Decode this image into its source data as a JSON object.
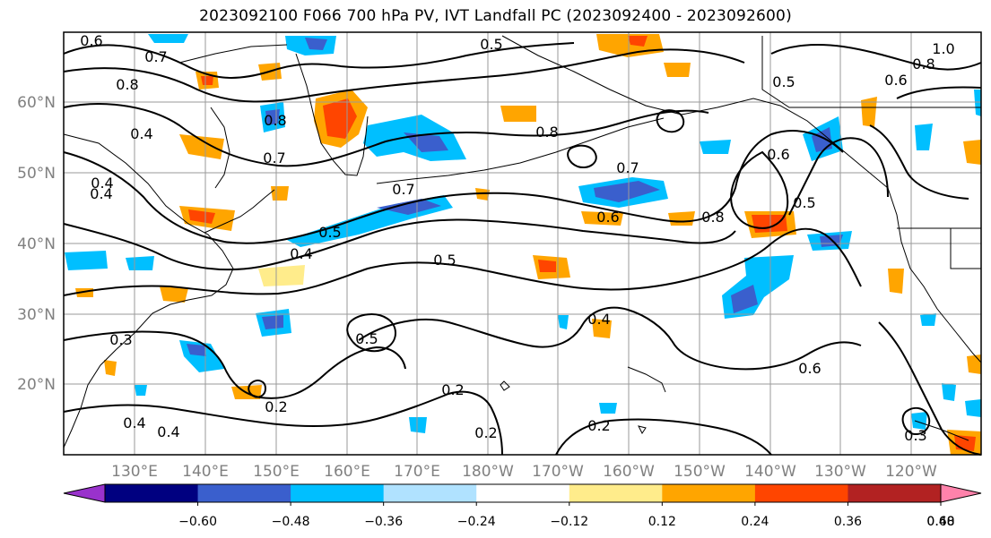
{
  "title": "2023092100 F066 700 hPa PV, IVT Landfall PC (2023092400 - 2023092600)",
  "map": {
    "lat_labels": [
      "60°N",
      "50°N",
      "40°N",
      "30°N",
      "20°N"
    ],
    "lon_labels": [
      "130°E",
      "140°E",
      "150°E",
      "160°E",
      "170°E",
      "180°W",
      "170°W",
      "160°W",
      "150°W",
      "140°W",
      "130°W",
      "120°W"
    ],
    "contour_labels": [
      "0.6",
      "0.7",
      "0.8",
      "0.8",
      "0.4",
      "0.4",
      "0.7",
      "0.7",
      "0.5",
      "0.4",
      "0.5",
      "0.5",
      "0.4",
      "0.3",
      "0.4",
      "0.4",
      "0.2",
      "0.2",
      "0.2",
      "0.2",
      "0.7",
      "0.6",
      "0.8",
      "0.6",
      "0.5",
      "0.5",
      "0.6",
      "0.3",
      "1.0",
      "0.8",
      "0.6",
      "0.5",
      "0.8",
      "0.4"
    ]
  },
  "colorbar": {
    "tick_labels": [
      "−0.60",
      "−0.48",
      "−0.36",
      "−0.24",
      "−0.12",
      "0.12",
      "0.24",
      "0.36",
      "0.48",
      "0.60"
    ],
    "colors": [
      "#9932cc",
      "#000080",
      "#3a5fcd",
      "#00bfff",
      "#b0e2ff",
      "#ffffff",
      "#ffec8b",
      "#ffa500",
      "#ff4500",
      "#b22222",
      "#ff82ab"
    ]
  }
}
